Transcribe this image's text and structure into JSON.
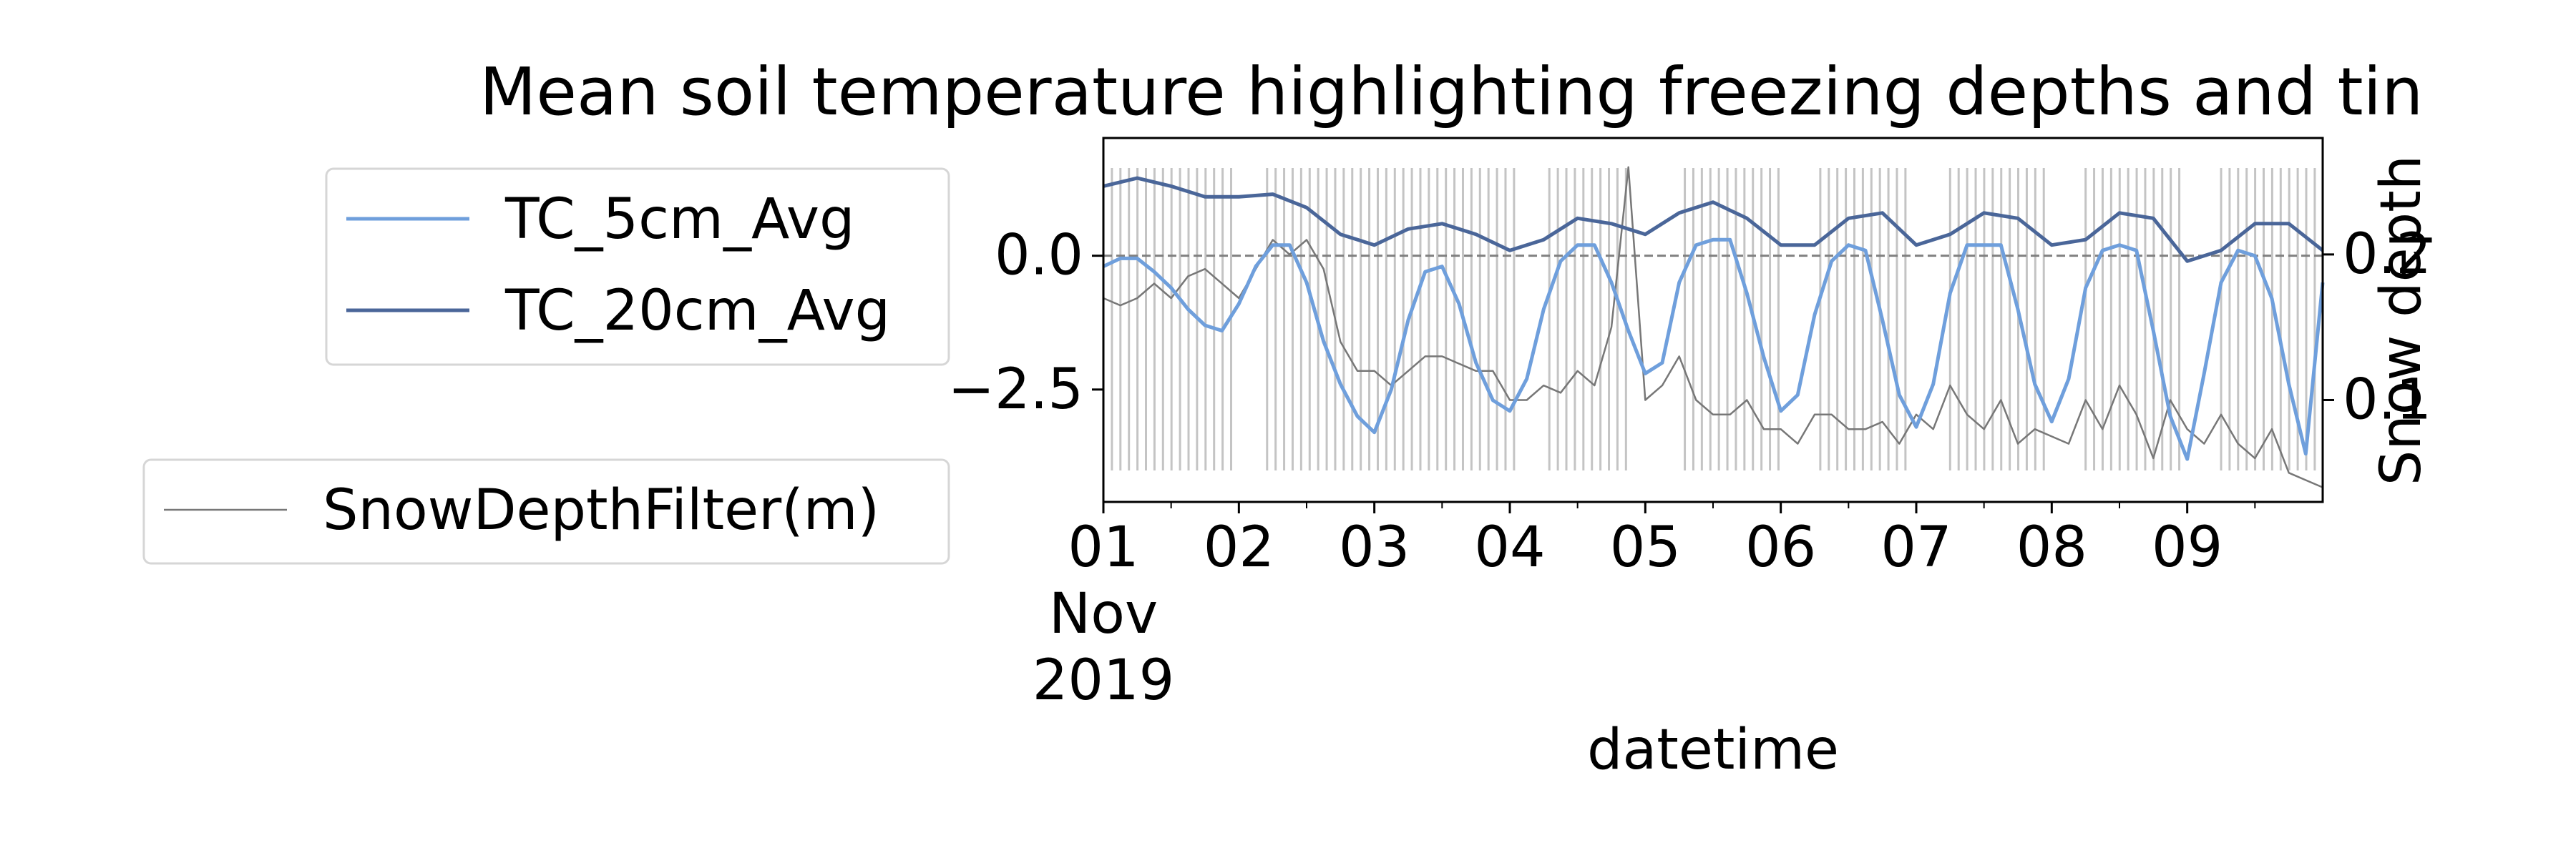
{
  "chart_data": {
    "type": "line",
    "title": "Mean soil temperature highlighting freezing depths and tin",
    "xlabel": "datetime",
    "ylabel": "",
    "ylabel_right": "Snow depth",
    "x_range": [
      "2019-11-01",
      "2019-11-10"
    ],
    "ylim": [
      -4.6,
      2.2
    ],
    "ylim_right": [
      0.03,
      0.28
    ],
    "yticks": [
      0.0,
      -2.5
    ],
    "yticks_right": [
      0.2,
      0.1
    ],
    "xticks": [
      {
        "date": "2019-11-01",
        "label": "01",
        "month": "Nov",
        "year": "2019"
      },
      {
        "date": "2019-11-02",
        "label": "02"
      },
      {
        "date": "2019-11-03",
        "label": "03"
      },
      {
        "date": "2019-11-04",
        "label": "04"
      },
      {
        "date": "2019-11-05",
        "label": "05"
      },
      {
        "date": "2019-11-06",
        "label": "06"
      },
      {
        "date": "2019-11-07",
        "label": "07"
      },
      {
        "date": "2019-11-08",
        "label": "08"
      },
      {
        "date": "2019-11-09",
        "label": "09"
      }
    ],
    "reference_line": {
      "y": 0.0,
      "style": "dashed",
      "color": "#808080"
    },
    "freezing_periods": [
      [
        "2019-11-01 00:00",
        "2019-11-01 23:00"
      ],
      [
        "2019-11-02 05:00",
        "2019-11-04 02:00"
      ],
      [
        "2019-11-04 07:00",
        "2019-11-04 22:00"
      ],
      [
        "2019-11-05 07:00",
        "2019-11-06 00:00"
      ],
      [
        "2019-11-06 07:00",
        "2019-11-06 23:00"
      ],
      [
        "2019-11-07 06:00",
        "2019-11-07 23:00"
      ],
      [
        "2019-11-08 06:00",
        "2019-11-08 23:00"
      ],
      [
        "2019-11-09 06:00",
        "2019-11-09 23:00"
      ]
    ],
    "legend": {
      "position": "left-outside"
    },
    "series": [
      {
        "name": "TC_5cm_Avg",
        "axis": "left",
        "color": "#6f9fdc",
        "x": [
          "2019-11-01 00:00",
          "2019-11-01 03:00",
          "2019-11-01 06:00",
          "2019-11-01 09:00",
          "2019-11-01 12:00",
          "2019-11-01 15:00",
          "2019-11-01 18:00",
          "2019-11-01 21:00",
          "2019-11-02 00:00",
          "2019-11-02 03:00",
          "2019-11-02 06:00",
          "2019-11-02 09:00",
          "2019-11-02 12:00",
          "2019-11-02 15:00",
          "2019-11-02 18:00",
          "2019-11-02 21:00",
          "2019-11-03 00:00",
          "2019-11-03 03:00",
          "2019-11-03 06:00",
          "2019-11-03 09:00",
          "2019-11-03 12:00",
          "2019-11-03 15:00",
          "2019-11-03 18:00",
          "2019-11-03 21:00",
          "2019-11-04 00:00",
          "2019-11-04 03:00",
          "2019-11-04 06:00",
          "2019-11-04 09:00",
          "2019-11-04 12:00",
          "2019-11-04 15:00",
          "2019-11-04 18:00",
          "2019-11-04 21:00",
          "2019-11-05 00:00",
          "2019-11-05 03:00",
          "2019-11-05 06:00",
          "2019-11-05 09:00",
          "2019-11-05 12:00",
          "2019-11-05 15:00",
          "2019-11-05 18:00",
          "2019-11-05 21:00",
          "2019-11-06 00:00",
          "2019-11-06 03:00",
          "2019-11-06 06:00",
          "2019-11-06 09:00",
          "2019-11-06 12:00",
          "2019-11-06 15:00",
          "2019-11-06 18:00",
          "2019-11-06 21:00",
          "2019-11-07 00:00",
          "2019-11-07 03:00",
          "2019-11-07 06:00",
          "2019-11-07 09:00",
          "2019-11-07 12:00",
          "2019-11-07 15:00",
          "2019-11-07 18:00",
          "2019-11-07 21:00",
          "2019-11-08 00:00",
          "2019-11-08 03:00",
          "2019-11-08 06:00",
          "2019-11-08 09:00",
          "2019-11-08 12:00",
          "2019-11-08 15:00",
          "2019-11-08 18:00",
          "2019-11-08 21:00",
          "2019-11-09 00:00",
          "2019-11-09 03:00",
          "2019-11-09 06:00",
          "2019-11-09 09:00",
          "2019-11-09 12:00",
          "2019-11-09 15:00",
          "2019-11-09 18:00",
          "2019-11-09 21:00",
          "2019-11-10 00:00"
        ],
        "values": [
          -0.2,
          -0.05,
          -0.05,
          -0.3,
          -0.6,
          -1.0,
          -1.3,
          -1.4,
          -0.9,
          -0.2,
          0.2,
          0.2,
          -0.5,
          -1.6,
          -2.4,
          -3.0,
          -3.3,
          -2.5,
          -1.2,
          -0.3,
          -0.2,
          -0.9,
          -2.0,
          -2.7,
          -2.9,
          -2.3,
          -1.0,
          -0.1,
          0.2,
          0.2,
          -0.5,
          -1.4,
          -2.2,
          -2.0,
          -0.5,
          0.2,
          0.3,
          0.3,
          -0.7,
          -1.9,
          -2.9,
          -2.6,
          -1.1,
          -0.1,
          0.2,
          0.1,
          -1.2,
          -2.6,
          -3.2,
          -2.4,
          -0.7,
          0.2,
          0.2,
          0.2,
          -1.0,
          -2.4,
          -3.1,
          -2.3,
          -0.6,
          0.1,
          0.2,
          0.1,
          -1.4,
          -3.0,
          -3.8,
          -2.2,
          -0.5,
          0.1,
          0.0,
          -0.8,
          -2.4,
          -3.7,
          -0.5
        ]
      },
      {
        "name": "TC_20cm_Avg",
        "axis": "left",
        "color": "#4a6699",
        "x": [
          "2019-11-01 00:00",
          "2019-11-01 06:00",
          "2019-11-01 12:00",
          "2019-11-01 18:00",
          "2019-11-02 00:00",
          "2019-11-02 06:00",
          "2019-11-02 12:00",
          "2019-11-02 18:00",
          "2019-11-03 00:00",
          "2019-11-03 06:00",
          "2019-11-03 12:00",
          "2019-11-03 18:00",
          "2019-11-04 00:00",
          "2019-11-04 06:00",
          "2019-11-04 12:00",
          "2019-11-04 18:00",
          "2019-11-05 00:00",
          "2019-11-05 06:00",
          "2019-11-05 12:00",
          "2019-11-05 18:00",
          "2019-11-06 00:00",
          "2019-11-06 06:00",
          "2019-11-06 12:00",
          "2019-11-06 18:00",
          "2019-11-07 00:00",
          "2019-11-07 06:00",
          "2019-11-07 12:00",
          "2019-11-07 18:00",
          "2019-11-08 00:00",
          "2019-11-08 06:00",
          "2019-11-08 12:00",
          "2019-11-08 18:00",
          "2019-11-09 00:00",
          "2019-11-09 06:00",
          "2019-11-09 12:00",
          "2019-11-09 18:00",
          "2019-11-10 00:00"
        ],
        "values": [
          1.3,
          1.45,
          1.3,
          1.1,
          1.1,
          1.15,
          0.9,
          0.4,
          0.2,
          0.5,
          0.6,
          0.4,
          0.1,
          0.3,
          0.7,
          0.6,
          0.4,
          0.8,
          1.0,
          0.7,
          0.2,
          0.2,
          0.7,
          0.8,
          0.2,
          0.4,
          0.8,
          0.7,
          0.2,
          0.3,
          0.8,
          0.7,
          -0.1,
          0.1,
          0.6,
          0.6,
          0.1
        ]
      },
      {
        "name": "SnowDepthFilter(m)",
        "axis": "right",
        "color": "#777777",
        "x": [
          "2019-11-01 00:00",
          "2019-11-01 03:00",
          "2019-11-01 06:00",
          "2019-11-01 09:00",
          "2019-11-01 12:00",
          "2019-11-01 15:00",
          "2019-11-01 18:00",
          "2019-11-01 21:00",
          "2019-11-02 00:00",
          "2019-11-02 03:00",
          "2019-11-02 06:00",
          "2019-11-02 09:00",
          "2019-11-02 12:00",
          "2019-11-02 15:00",
          "2019-11-02 18:00",
          "2019-11-02 21:00",
          "2019-11-03 00:00",
          "2019-11-03 03:00",
          "2019-11-03 06:00",
          "2019-11-03 09:00",
          "2019-11-03 12:00",
          "2019-11-03 15:00",
          "2019-11-03 18:00",
          "2019-11-03 21:00",
          "2019-11-04 00:00",
          "2019-11-04 03:00",
          "2019-11-04 06:00",
          "2019-11-04 09:00",
          "2019-11-04 12:00",
          "2019-11-04 15:00",
          "2019-11-04 18:00",
          "2019-11-04 21:00",
          "2019-11-05 00:00",
          "2019-11-05 03:00",
          "2019-11-05 06:00",
          "2019-11-05 09:00",
          "2019-11-05 12:00",
          "2019-11-05 15:00",
          "2019-11-05 18:00",
          "2019-11-05 21:00",
          "2019-11-06 00:00",
          "2019-11-06 03:00",
          "2019-11-06 06:00",
          "2019-11-06 09:00",
          "2019-11-06 12:00",
          "2019-11-06 15:00",
          "2019-11-06 18:00",
          "2019-11-06 21:00",
          "2019-11-07 00:00",
          "2019-11-07 03:00",
          "2019-11-07 06:00",
          "2019-11-07 09:00",
          "2019-11-07 12:00",
          "2019-11-07 15:00",
          "2019-11-07 18:00",
          "2019-11-07 21:00",
          "2019-11-08 00:00",
          "2019-11-08 03:00",
          "2019-11-08 06:00",
          "2019-11-08 09:00",
          "2019-11-08 12:00",
          "2019-11-08 15:00",
          "2019-11-08 18:00",
          "2019-11-08 21:00",
          "2019-11-09 00:00",
          "2019-11-09 03:00",
          "2019-11-09 06:00",
          "2019-11-09 09:00",
          "2019-11-09 12:00",
          "2019-11-09 15:00",
          "2019-11-09 18:00",
          "2019-11-09 21:00",
          "2019-11-10 00:00"
        ],
        "values": [
          0.17,
          0.165,
          0.17,
          0.18,
          0.17,
          0.185,
          0.19,
          0.18,
          0.17,
          0.19,
          0.21,
          0.2,
          0.21,
          0.19,
          0.14,
          0.12,
          0.12,
          0.11,
          0.12,
          0.13,
          0.13,
          0.125,
          0.12,
          0.12,
          0.1,
          0.1,
          0.11,
          0.105,
          0.12,
          0.11,
          0.15,
          0.26,
          0.1,
          0.11,
          0.13,
          0.1,
          0.09,
          0.09,
          0.1,
          0.08,
          0.08,
          0.07,
          0.09,
          0.09,
          0.08,
          0.08,
          0.085,
          0.07,
          0.09,
          0.08,
          0.11,
          0.09,
          0.08,
          0.1,
          0.07,
          0.08,
          0.075,
          0.07,
          0.1,
          0.08,
          0.11,
          0.09,
          0.06,
          0.1,
          0.08,
          0.07,
          0.09,
          0.07,
          0.06,
          0.08,
          0.05,
          0.045,
          0.04
        ]
      }
    ]
  }
}
